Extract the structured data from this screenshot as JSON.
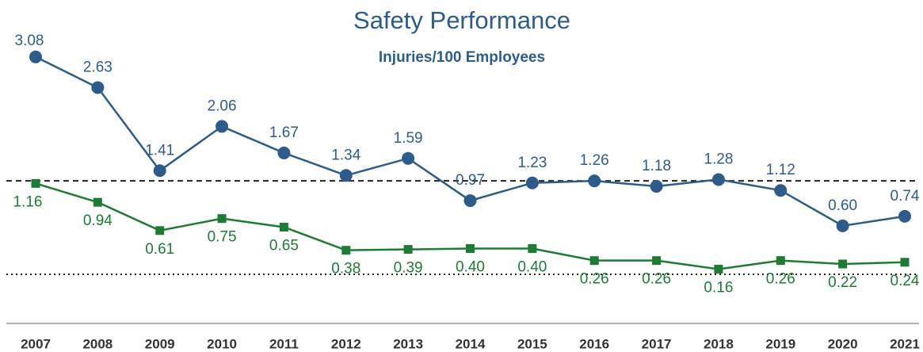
{
  "chart_data": {
    "type": "line",
    "title": "Safety Performance",
    "subtitle": "Injuries/100 Employees",
    "categories": [
      "2007",
      "2008",
      "2009",
      "2010",
      "2011",
      "2012",
      "2013",
      "2014",
      "2015",
      "2016",
      "2017",
      "2018",
      "2019",
      "2020",
      "2021"
    ],
    "series": [
      {
        "color": "#2e5c8a",
        "marker": "circle",
        "values": [
          3.08,
          2.63,
          1.41,
          2.06,
          1.67,
          1.34,
          1.59,
          0.97,
          1.23,
          1.26,
          1.18,
          1.28,
          1.12,
          0.6,
          0.74
        ],
        "value_labels": [
          "3.08",
          "2.63",
          "1.41",
          "2.06",
          "1.67",
          "1.34",
          "1.59",
          "0.97",
          "1.23",
          "1.26",
          "1.18",
          "1.28",
          "1.12",
          "0.60",
          "0.74"
        ]
      },
      {
        "color": "#1e7b34",
        "marker": "square",
        "axis": "y2",
        "values": [
          1.16,
          0.94,
          0.61,
          0.75,
          0.65,
          0.38,
          0.39,
          0.4,
          0.4,
          0.26,
          0.26,
          0.16,
          0.26,
          0.22,
          0.24
        ],
        "value_labels": [
          "1.16",
          "0.94",
          "0.61",
          "0.75",
          "0.65",
          "0.38",
          "0.39",
          "0.40",
          "0.40",
          "0.26",
          "0.26",
          "0.16",
          "0.26",
          "0.22",
          "0.24"
        ]
      }
    ],
    "ylim": [
      -0.74,
      3.45
    ],
    "y2lim": [
      -0.4,
      2.93
    ],
    "reference_lines": [
      {
        "value": 1.19,
        "axis": "y2",
        "style": "dashed"
      },
      {
        "value": 0.1,
        "axis": "y2",
        "style": "dotted"
      }
    ]
  }
}
